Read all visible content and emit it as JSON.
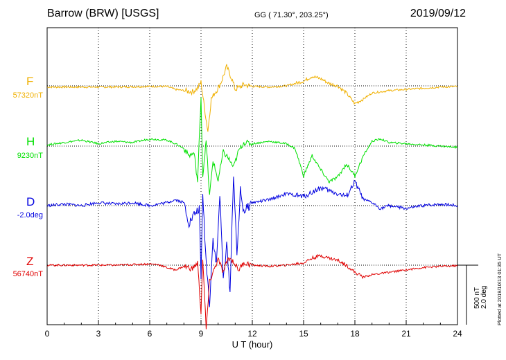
{
  "header": {
    "station": "Barrow (BRW)  [USGS]",
    "coords": "GG ( 71.30°, 203.25°)",
    "date": "2019/09/12"
  },
  "components": [
    {
      "label": "F",
      "baseline": "57320nT",
      "color": "#f0b000"
    },
    {
      "label": "H",
      "baseline": "9230nT",
      "color": "#00e000"
    },
    {
      "label": "D",
      "baseline": "-2.0deg",
      "color": "#0000e0"
    },
    {
      "label": "Z",
      "baseline": "56740nT",
      "color": "#e00000"
    }
  ],
  "scale": {
    "line1": "500 nT",
    "line2": "2.0 deg"
  },
  "plotted_note": "Plotted at 2019/10/13 01:35 UT",
  "chart_data": {
    "type": "line",
    "title": "Barrow (BRW)  [USGS]",
    "xlabel": "U T (hour)",
    "ylabel": "",
    "xlim": [
      0,
      24
    ],
    "x_ticks": [
      "0",
      "3",
      "6",
      "9",
      "12",
      "15",
      "18",
      "21",
      "24"
    ],
    "grid": true,
    "series": [
      {
        "name": "F",
        "unit": "nT",
        "x": [
          0,
          2,
          4,
          6,
          7,
          7.5,
          8,
          8.5,
          8.8,
          9,
          9.2,
          9.4,
          9.6,
          9.8,
          10,
          10.2,
          10.5,
          10.8,
          11,
          11.5,
          12,
          13,
          14,
          15,
          15.5,
          16,
          16.5,
          17,
          17.5,
          18,
          18.5,
          19,
          20,
          21,
          22,
          23,
          24
        ],
        "y": [
          -10,
          -10,
          -10,
          -5,
          -5,
          -30,
          -40,
          -50,
          -20,
          30,
          -180,
          -380,
          -110,
          -60,
          -20,
          40,
          160,
          60,
          -30,
          10,
          -5,
          -10,
          0,
          40,
          80,
          60,
          20,
          0,
          -60,
          -150,
          -110,
          -60,
          -40,
          -30,
          -20,
          -10,
          -5
        ]
      },
      {
        "name": "H",
        "unit": "nT",
        "x": [
          0,
          1,
          2,
          3,
          4,
          5,
          6,
          7,
          7.5,
          8,
          8.3,
          8.6,
          8.8,
          9,
          9.1,
          9.3,
          9.5,
          9.7,
          10,
          10.3,
          10.6,
          10.9,
          11.2,
          11.5,
          12,
          13,
          14,
          14.5,
          15,
          15.5,
          16,
          16.5,
          17,
          17.5,
          18,
          18.5,
          19,
          19.5,
          20,
          21,
          22,
          23,
          24
        ],
        "y": [
          10,
          30,
          50,
          20,
          40,
          30,
          60,
          50,
          20,
          -20,
          -80,
          -60,
          -300,
          420,
          -250,
          40,
          -420,
          -120,
          -290,
          -50,
          -100,
          -180,
          -40,
          30,
          20,
          40,
          20,
          -20,
          -250,
          -80,
          -200,
          -300,
          -260,
          -150,
          -250,
          -80,
          40,
          60,
          30,
          20,
          10,
          0,
          -10
        ]
      },
      {
        "name": "D",
        "unit": "deg",
        "x": [
          0,
          1,
          2,
          3,
          4,
          5,
          6,
          7,
          7.5,
          8,
          8.3,
          8.6,
          8.9,
          9,
          9.1,
          9.3,
          9.5,
          9.7,
          9.9,
          10.1,
          10.3,
          10.5,
          10.7,
          10.9,
          11.1,
          11.3,
          11.5,
          12,
          13,
          14,
          15,
          16,
          17,
          17.5,
          18,
          18.5,
          19,
          19.5,
          20,
          21,
          22,
          23,
          24
        ],
        "y": [
          0,
          0.05,
          0,
          0.1,
          0.05,
          0.1,
          0,
          0.1,
          0.2,
          0.1,
          -0.6,
          -0.3,
          -0.1,
          -2.5,
          0.4,
          -1.9,
          -3.3,
          -1.1,
          -2.0,
          0.4,
          -2.5,
          -1.3,
          -2.9,
          1.1,
          -1.7,
          0.5,
          -0.2,
          0.1,
          0.2,
          0.4,
          0.3,
          0.6,
          0.4,
          0.3,
          0.8,
          0.2,
          0.1,
          -0.1,
          0.0,
          -0.1,
          0.0,
          0.05,
          0.0
        ]
      },
      {
        "name": "Z",
        "unit": "nT",
        "x": [
          0,
          2,
          4,
          6,
          6.5,
          7,
          7.5,
          8,
          8.5,
          8.8,
          9,
          9.1,
          9.2,
          9.3,
          9.5,
          9.7,
          10,
          10.3,
          10.6,
          10.9,
          11.2,
          11.5,
          12,
          13,
          14,
          15,
          15.5,
          16,
          16.5,
          17,
          17.5,
          18,
          18.5,
          19,
          20,
          21,
          22,
          23,
          24
        ],
        "y": [
          0,
          0,
          0,
          10,
          5,
          -20,
          -40,
          -10,
          -30,
          20,
          -400,
          60,
          -240,
          -540,
          -140,
          -60,
          50,
          -60,
          60,
          30,
          -40,
          20,
          0,
          -10,
          0,
          20,
          60,
          80,
          60,
          40,
          0,
          -60,
          -100,
          -80,
          -60,
          -40,
          -20,
          -10,
          -5
        ]
      }
    ]
  }
}
